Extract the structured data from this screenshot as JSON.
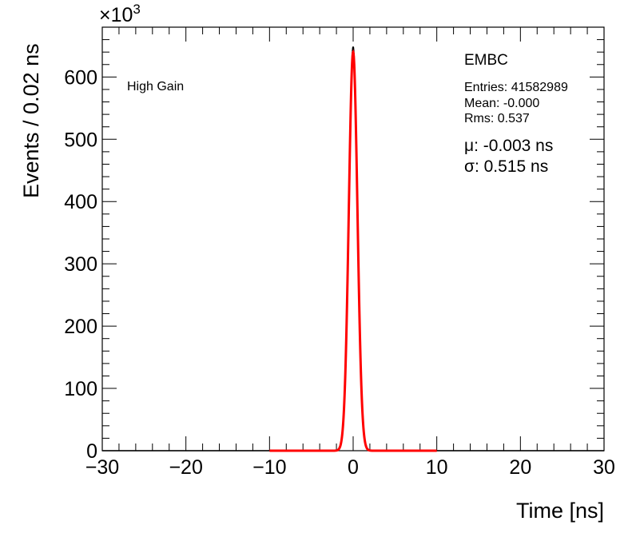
{
  "chart_data": {
    "type": "line",
    "title": "",
    "xlabel": "Time [ns]",
    "ylabel": "Events / 0.02 ns",
    "xlim": [
      -30,
      30
    ],
    "ylim": [
      0,
      680
    ],
    "y_scale_label": "×10",
    "y_scale_exponent": "3",
    "x_ticks": [
      -30,
      -20,
      -10,
      0,
      10,
      20,
      30
    ],
    "x_tick_labels": [
      "−30",
      "−20",
      "−10",
      "0",
      "10",
      "20",
      "30"
    ],
    "y_ticks": [
      0,
      100,
      200,
      300,
      400,
      500,
      600
    ],
    "y_tick_labels": [
      "0",
      "100",
      "200",
      "300",
      "400",
      "500",
      "600"
    ],
    "grid": false,
    "series": [
      {
        "kind": "histogram",
        "color": "#000000",
        "peak": 648,
        "mean": -0.003,
        "sigma": 0.515,
        "range": [
          -2.5,
          2.5
        ]
      },
      {
        "kind": "gaussian-fit",
        "color": "#ff0000",
        "peak": 640,
        "mean": -0.003,
        "sigma": 0.515,
        "range": [
          -10,
          10
        ]
      }
    ],
    "annotations": {
      "gain_label": "High Gain",
      "region": "EMBC",
      "entries": "Entries: 41582989",
      "mean": "Mean: -0.000",
      "rms": "Rms: 0.537",
      "mu": "μ: -0.003 ns",
      "sigma": "σ: 0.515 ns"
    }
  }
}
